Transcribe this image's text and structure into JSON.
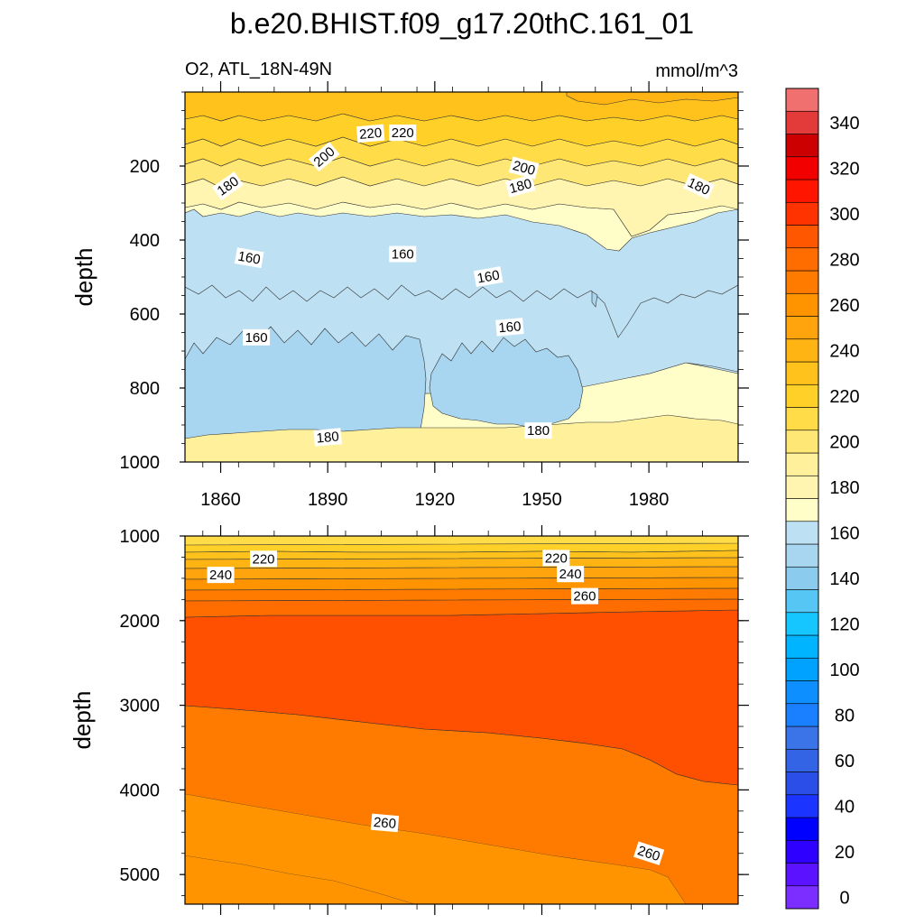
{
  "chart_data": {
    "type": "heatmap",
    "title": "b.e20.BHIST.f09_g17.20thC.161_01",
    "subtitle_left": "O2, ATL_18N-49N",
    "subtitle_right": "mmol/m^3",
    "xlabel": "",
    "x_ticks": [
      "1860",
      "1890",
      "1920",
      "1950",
      "1980"
    ],
    "x_range": [
      1850,
      2005
    ],
    "panels": [
      {
        "name": "upper",
        "ylabel": "depth",
        "ylim": [
          1000,
          0
        ],
        "y_ticks": [
          "200",
          "400",
          "600",
          "800",
          "1000"
        ],
        "contour_labels": [
          {
            "text": "220",
            "x": 1902,
            "y": 112,
            "rot": -5
          },
          {
            "text": "220",
            "x": 1911,
            "y": 110,
            "rot": 0
          },
          {
            "text": "200",
            "x": 1889,
            "y": 175,
            "rot": -40
          },
          {
            "text": "200",
            "x": 1945,
            "y": 205,
            "rot": 15
          },
          {
            "text": "180",
            "x": 1862,
            "y": 254,
            "rot": -35
          },
          {
            "text": "180",
            "x": 1944,
            "y": 254,
            "rot": -15
          },
          {
            "text": "180",
            "x": 1994,
            "y": 255,
            "rot": 25
          },
          {
            "text": "160",
            "x": 1868,
            "y": 448,
            "rot": 10
          },
          {
            "text": "160",
            "x": 1911,
            "y": 438,
            "rot": 0
          },
          {
            "text": "160",
            "x": 1935,
            "y": 499,
            "rot": -10
          },
          {
            "text": "160",
            "x": 1941,
            "y": 635,
            "rot": -5
          },
          {
            "text": "160",
            "x": 1870,
            "y": 663,
            "rot": 0
          },
          {
            "text": "180",
            "x": 1890,
            "y": 933,
            "rot": -5
          },
          {
            "text": "180",
            "x": 1949,
            "y": 915,
            "rot": 0
          }
        ]
      },
      {
        "name": "lower",
        "ylabel": "depth",
        "ylim": [
          5350,
          1000
        ],
        "y_ticks": [
          "1000",
          "2000",
          "3000",
          "4000",
          "5000"
        ],
        "contour_labels": [
          {
            "text": "220",
            "x": 1872,
            "y": 1270,
            "rot": 0
          },
          {
            "text": "240",
            "x": 1860,
            "y": 1460,
            "rot": 0
          },
          {
            "text": "220",
            "x": 1954,
            "y": 1260,
            "rot": 0
          },
          {
            "text": "240",
            "x": 1958,
            "y": 1450,
            "rot": 0
          },
          {
            "text": "260",
            "x": 1962,
            "y": 1710,
            "rot": 0
          },
          {
            "text": "260",
            "x": 1906,
            "y": 4390,
            "rot": 5
          },
          {
            "text": "260",
            "x": 1980,
            "y": 4750,
            "rot": 18
          }
        ]
      }
    ],
    "colorbar": {
      "labels": [
        "0",
        "20",
        "40",
        "60",
        "80",
        "100",
        "120",
        "140",
        "160",
        "180",
        "200",
        "220",
        "240",
        "260",
        "280",
        "300",
        "320",
        "340"
      ],
      "levels": [
        0,
        10,
        20,
        30,
        40,
        50,
        60,
        70,
        80,
        90,
        100,
        110,
        120,
        130,
        140,
        150,
        160,
        170,
        180,
        190,
        200,
        210,
        220,
        230,
        240,
        250,
        260,
        270,
        280,
        290,
        300,
        310,
        320,
        330,
        340,
        350,
        360
      ],
      "colors": [
        "#7b2eff",
        "#5a12ff",
        "#2d00ff",
        "#0000ff",
        "#1c34ff",
        "#2b4ee8",
        "#3464e6",
        "#3a74e8",
        "#1b80ff",
        "#0e8fff",
        "#00a2ff",
        "#00b4ff",
        "#16c6ff",
        "#56c7f5",
        "#8bcbee",
        "#a8d6f0",
        "#bde0f2",
        "#fffdc8",
        "#fff5b0",
        "#fff09c",
        "#ffe776",
        "#ffdc48",
        "#ffd028",
        "#ffc21c",
        "#ffb414",
        "#ffa40c",
        "#ff9300",
        "#ff7b00",
        "#ff6c00",
        "#ff5600",
        "#ff3300",
        "#ff1500",
        "#f20000",
        "#cc0000",
        "#e33a3a",
        "#f07070",
        "#f8aab0"
      ]
    }
  }
}
